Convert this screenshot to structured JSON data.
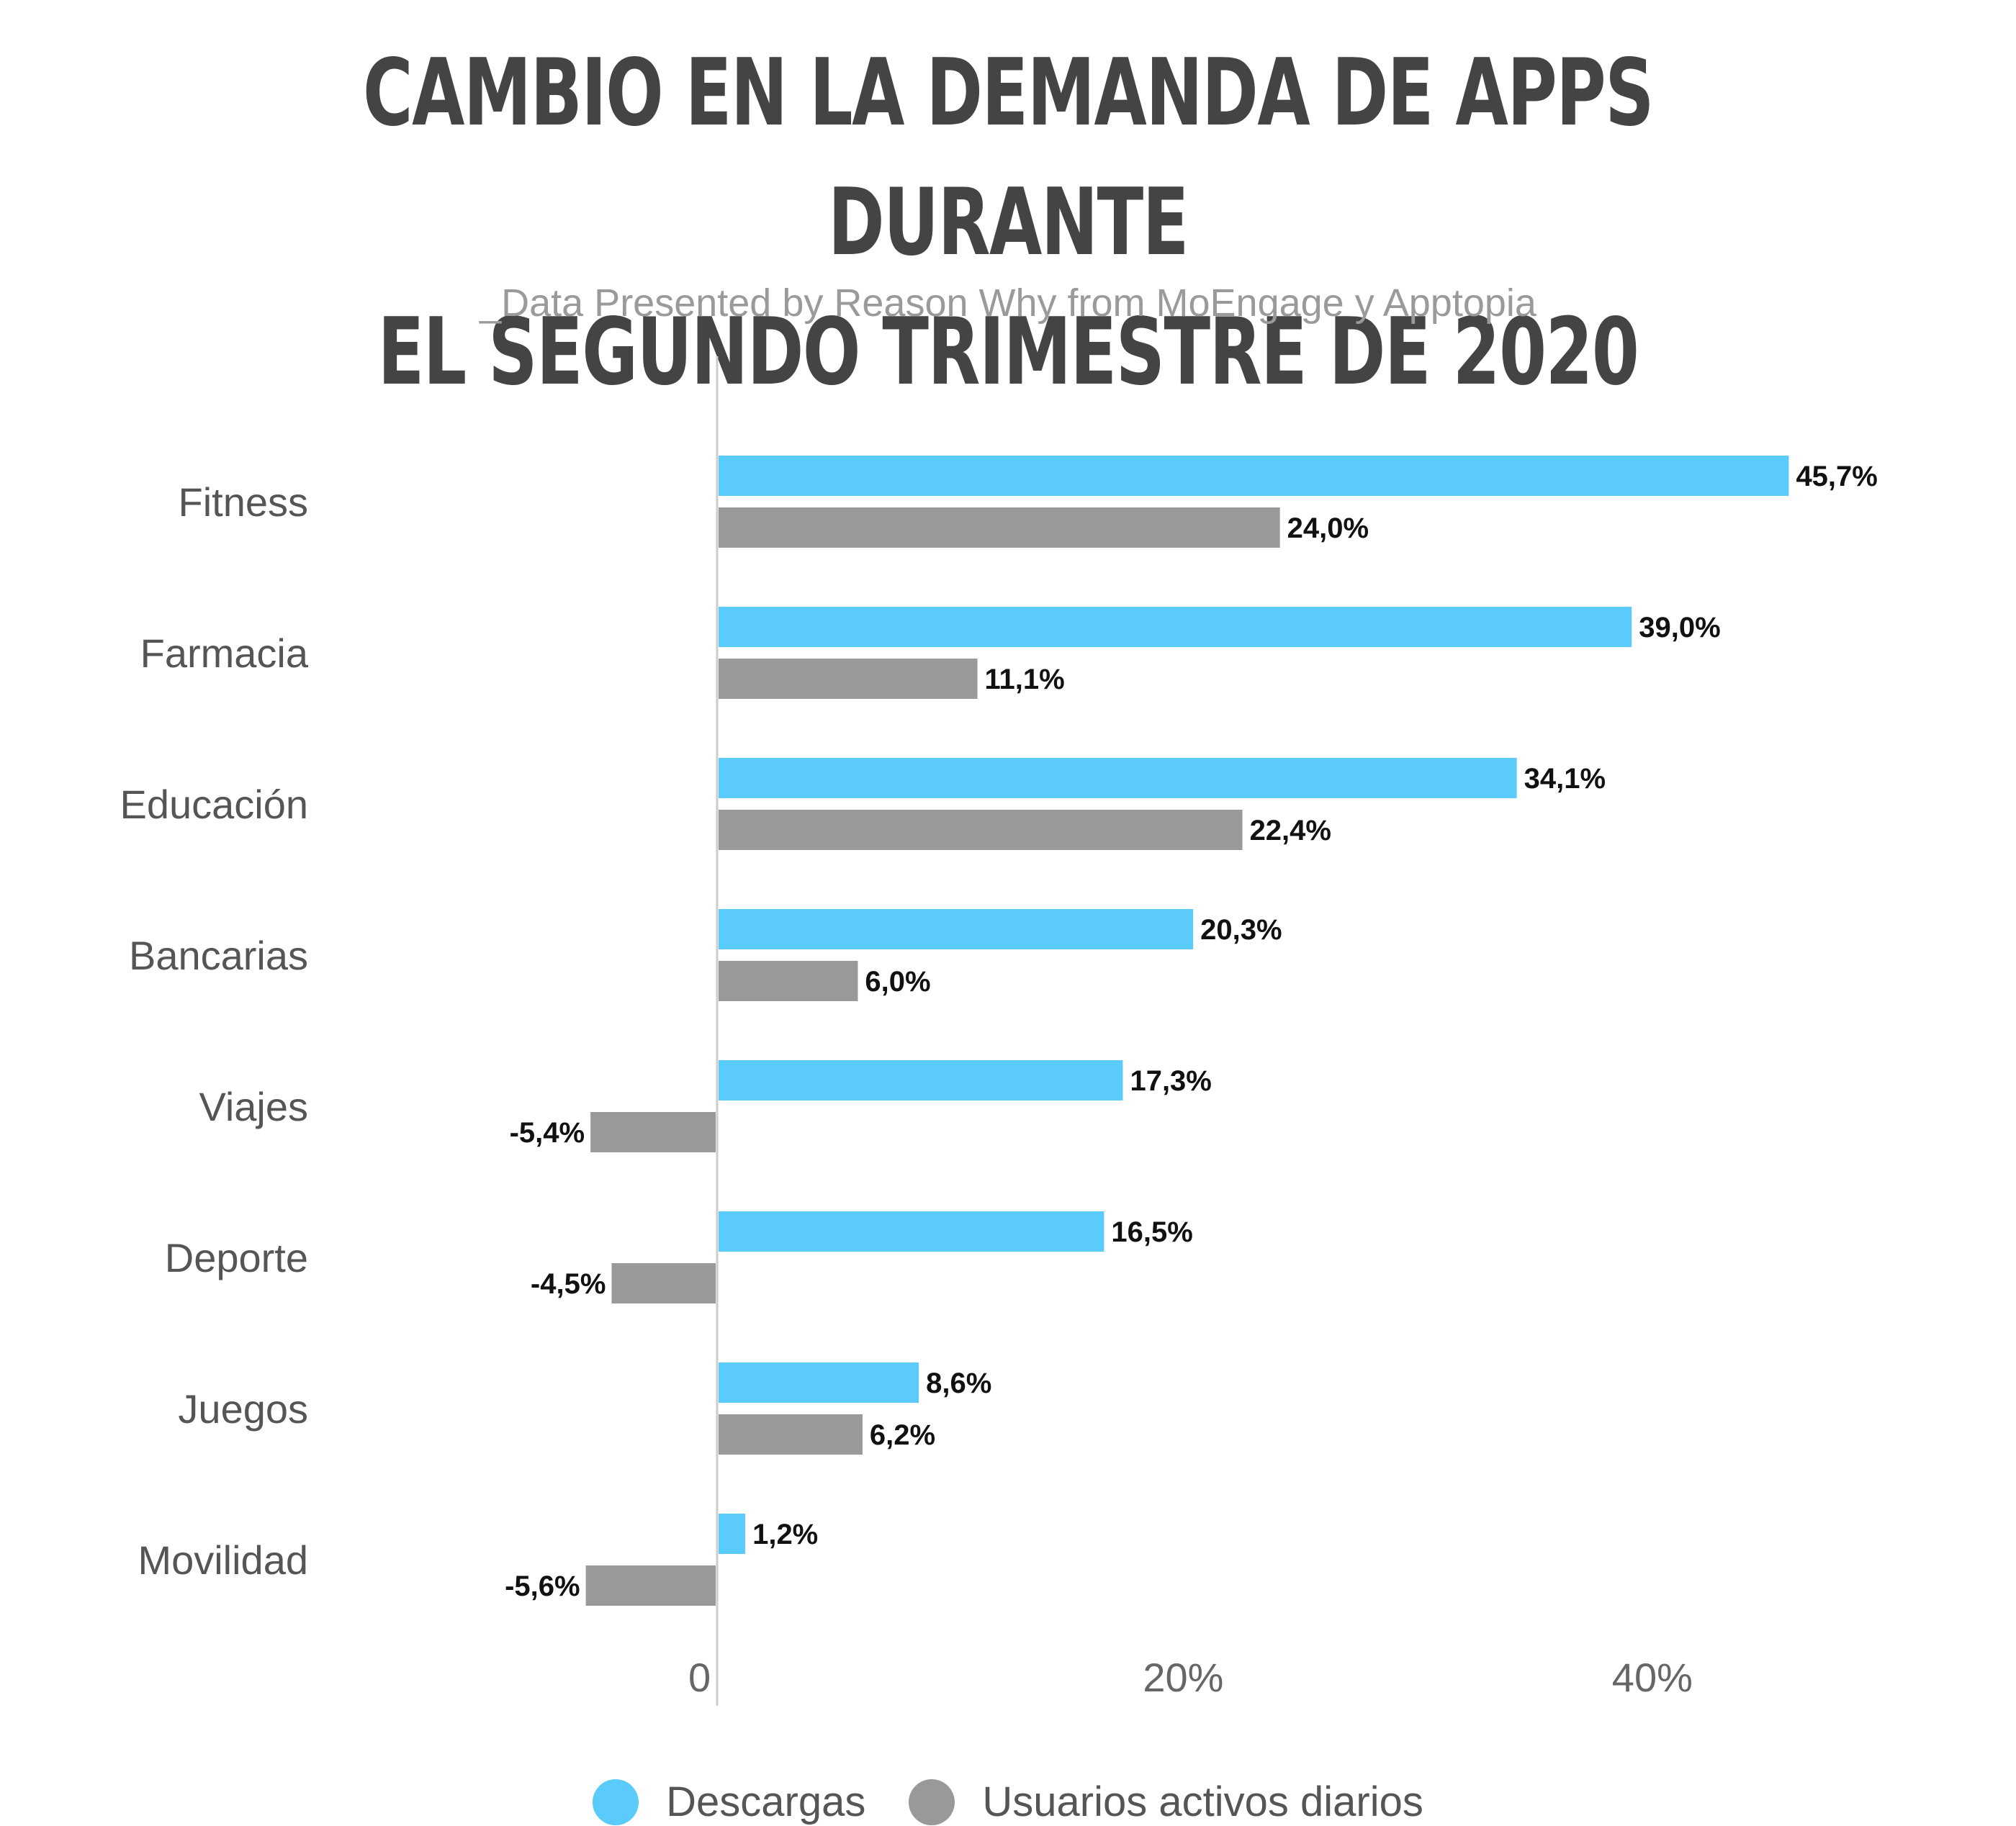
{
  "chart_data": {
    "type": "bar",
    "orientation": "horizontal",
    "title_line1": "CAMBIO EN LA DEMANDA DE APPS DURANTE",
    "title_line2": "EL SEGUNDO TRIMESTRE DE 2020",
    "subtitle": "_Data Presented by Reason Why from MoEngage y Apptopia",
    "categories": [
      "Fitness",
      "Farmacia",
      "Educación",
      "Bancarias",
      "Viajes",
      "Deporte",
      "Juegos",
      "Movilidad"
    ],
    "series": [
      {
        "name": "Descargas",
        "color": "#5ACBFA",
        "values": [
          45.7,
          39.0,
          34.1,
          20.3,
          17.3,
          16.5,
          8.6,
          1.2
        ],
        "labels": [
          "45,7%",
          "39,0%",
          "34,1%",
          "20,3%",
          "17,3%",
          "16,5%",
          "8,6%",
          "1,2%"
        ]
      },
      {
        "name": "Usuarios activos diarios",
        "color": "#999999",
        "values": [
          24.0,
          11.1,
          22.4,
          6.0,
          -5.4,
          -4.5,
          6.2,
          -5.6
        ],
        "labels": [
          "24,0%",
          "11,1%",
          "22,4%",
          "6,0%",
          "-5,4%",
          "-4,5%",
          "6,2%",
          "-5,6%"
        ]
      }
    ],
    "x_ticks": [
      {
        "value": 0,
        "label": "0"
      },
      {
        "value": 20,
        "label": "20%"
      },
      {
        "value": 40,
        "label": "40%"
      }
    ],
    "xlim": [
      -12,
      52
    ],
    "grid": false,
    "legend_position": "bottom"
  }
}
